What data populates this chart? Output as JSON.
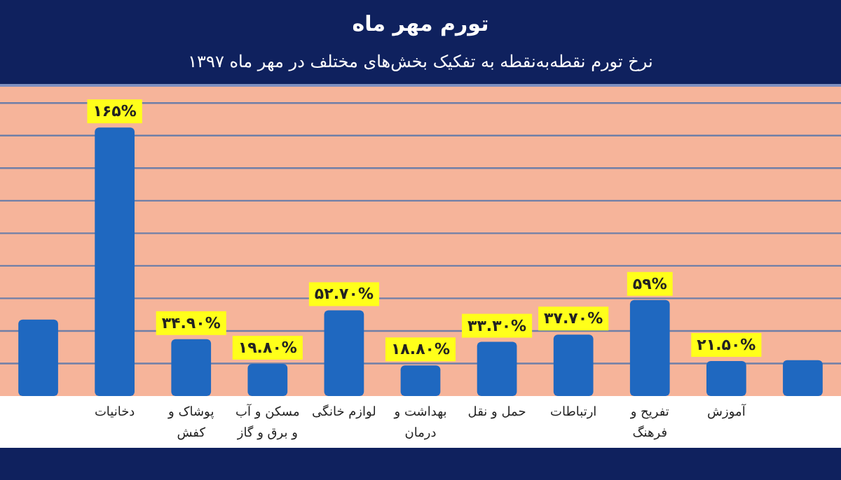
{
  "chart_data": {
    "type": "bar",
    "title": "تورم مهر ماه",
    "subtitle": "نرخ تورم نقطه‌به‌نقطه به تفکیک بخش‌های مختلف در مهر ماه ۱۳۹۷",
    "categories": [
      null,
      "دخانیات",
      "پوشاک و کفش",
      "مسکن و آب و برق و گاز",
      "لوازم خانگی",
      "بهداشت و درمان",
      "حمل و نقل",
      "ارتباطات",
      "تفریح و فرهنگ",
      "آموزش",
      null
    ],
    "values": [
      47,
      165,
      34.9,
      19.8,
      52.7,
      18.8,
      33.3,
      37.7,
      59,
      21.5,
      22
    ],
    "value_labels": [
      null,
      "۱۶۵%",
      "۳۴.۹۰%",
      "۱۹.۸۰%",
      "۵۲.۷۰%",
      "۱۸.۸۰%",
      "۳۳.۳۰%",
      "۳۷.۷۰%",
      "۵۹%",
      "۲۱.۵۰%",
      null
    ],
    "color": "#1f68c0",
    "ylim": [
      0,
      190
    ],
    "yticks": [
      {
        "value": 20,
        "label": null
      },
      {
        "value": 40,
        "label": null
      },
      {
        "value": 60,
        "label": null
      },
      {
        "value": 80,
        "label": null
      },
      {
        "value": 100,
        "label": null
      },
      {
        "value": 120,
        "label": null
      },
      {
        "value": 140,
        "label": null
      },
      {
        "value": 160,
        "label": null
      },
      {
        "value": 180,
        "label": null
      }
    ],
    "grid": "y",
    "tick_labels": "x"
  }
}
